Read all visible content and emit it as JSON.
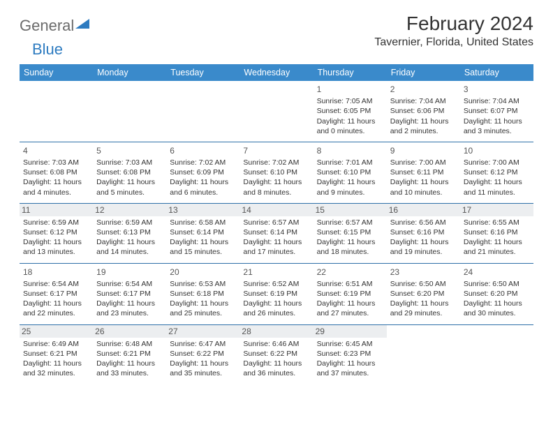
{
  "logo": {
    "part1": "General",
    "part2": "Blue"
  },
  "title": "February 2024",
  "location": "Tavernier, Florida, United States",
  "colors": {
    "header_bg": "#3a8acb",
    "header_text": "#ffffff",
    "divider": "#2d6fa8",
    "shade_bg": "#eceef0",
    "text": "#333333",
    "logo_grey": "#6b6b6b",
    "logo_blue": "#2d7bc0"
  },
  "typography": {
    "title_fontsize": 28,
    "location_fontsize": 16,
    "dayhead_fontsize": 12.5,
    "cell_fontsize": 10.5
  },
  "day_headers": [
    "Sunday",
    "Monday",
    "Tuesday",
    "Wednesday",
    "Thursday",
    "Friday",
    "Saturday"
  ],
  "weeks": [
    {
      "shaded": false,
      "days": [
        null,
        null,
        null,
        null,
        {
          "n": "1",
          "sunrise": "Sunrise: 7:05 AM",
          "sunset": "Sunset: 6:05 PM",
          "daylight1": "Daylight: 11 hours",
          "daylight2": "and 0 minutes."
        },
        {
          "n": "2",
          "sunrise": "Sunrise: 7:04 AM",
          "sunset": "Sunset: 6:06 PM",
          "daylight1": "Daylight: 11 hours",
          "daylight2": "and 2 minutes."
        },
        {
          "n": "3",
          "sunrise": "Sunrise: 7:04 AM",
          "sunset": "Sunset: 6:07 PM",
          "daylight1": "Daylight: 11 hours",
          "daylight2": "and 3 minutes."
        }
      ]
    },
    {
      "shaded": false,
      "days": [
        {
          "n": "4",
          "sunrise": "Sunrise: 7:03 AM",
          "sunset": "Sunset: 6:08 PM",
          "daylight1": "Daylight: 11 hours",
          "daylight2": "and 4 minutes."
        },
        {
          "n": "5",
          "sunrise": "Sunrise: 7:03 AM",
          "sunset": "Sunset: 6:08 PM",
          "daylight1": "Daylight: 11 hours",
          "daylight2": "and 5 minutes."
        },
        {
          "n": "6",
          "sunrise": "Sunrise: 7:02 AM",
          "sunset": "Sunset: 6:09 PM",
          "daylight1": "Daylight: 11 hours",
          "daylight2": "and 6 minutes."
        },
        {
          "n": "7",
          "sunrise": "Sunrise: 7:02 AM",
          "sunset": "Sunset: 6:10 PM",
          "daylight1": "Daylight: 11 hours",
          "daylight2": "and 8 minutes."
        },
        {
          "n": "8",
          "sunrise": "Sunrise: 7:01 AM",
          "sunset": "Sunset: 6:10 PM",
          "daylight1": "Daylight: 11 hours",
          "daylight2": "and 9 minutes."
        },
        {
          "n": "9",
          "sunrise": "Sunrise: 7:00 AM",
          "sunset": "Sunset: 6:11 PM",
          "daylight1": "Daylight: 11 hours",
          "daylight2": "and 10 minutes."
        },
        {
          "n": "10",
          "sunrise": "Sunrise: 7:00 AM",
          "sunset": "Sunset: 6:12 PM",
          "daylight1": "Daylight: 11 hours",
          "daylight2": "and 11 minutes."
        }
      ]
    },
    {
      "shaded": true,
      "days": [
        {
          "n": "11",
          "sunrise": "Sunrise: 6:59 AM",
          "sunset": "Sunset: 6:12 PM",
          "daylight1": "Daylight: 11 hours",
          "daylight2": "and 13 minutes."
        },
        {
          "n": "12",
          "sunrise": "Sunrise: 6:59 AM",
          "sunset": "Sunset: 6:13 PM",
          "daylight1": "Daylight: 11 hours",
          "daylight2": "and 14 minutes."
        },
        {
          "n": "13",
          "sunrise": "Sunrise: 6:58 AM",
          "sunset": "Sunset: 6:14 PM",
          "daylight1": "Daylight: 11 hours",
          "daylight2": "and 15 minutes."
        },
        {
          "n": "14",
          "sunrise": "Sunrise: 6:57 AM",
          "sunset": "Sunset: 6:14 PM",
          "daylight1": "Daylight: 11 hours",
          "daylight2": "and 17 minutes."
        },
        {
          "n": "15",
          "sunrise": "Sunrise: 6:57 AM",
          "sunset": "Sunset: 6:15 PM",
          "daylight1": "Daylight: 11 hours",
          "daylight2": "and 18 minutes."
        },
        {
          "n": "16",
          "sunrise": "Sunrise: 6:56 AM",
          "sunset": "Sunset: 6:16 PM",
          "daylight1": "Daylight: 11 hours",
          "daylight2": "and 19 minutes."
        },
        {
          "n": "17",
          "sunrise": "Sunrise: 6:55 AM",
          "sunset": "Sunset: 6:16 PM",
          "daylight1": "Daylight: 11 hours",
          "daylight2": "and 21 minutes."
        }
      ]
    },
    {
      "shaded": false,
      "days": [
        {
          "n": "18",
          "sunrise": "Sunrise: 6:54 AM",
          "sunset": "Sunset: 6:17 PM",
          "daylight1": "Daylight: 11 hours",
          "daylight2": "and 22 minutes."
        },
        {
          "n": "19",
          "sunrise": "Sunrise: 6:54 AM",
          "sunset": "Sunset: 6:17 PM",
          "daylight1": "Daylight: 11 hours",
          "daylight2": "and 23 minutes."
        },
        {
          "n": "20",
          "sunrise": "Sunrise: 6:53 AM",
          "sunset": "Sunset: 6:18 PM",
          "daylight1": "Daylight: 11 hours",
          "daylight2": "and 25 minutes."
        },
        {
          "n": "21",
          "sunrise": "Sunrise: 6:52 AM",
          "sunset": "Sunset: 6:19 PM",
          "daylight1": "Daylight: 11 hours",
          "daylight2": "and 26 minutes."
        },
        {
          "n": "22",
          "sunrise": "Sunrise: 6:51 AM",
          "sunset": "Sunset: 6:19 PM",
          "daylight1": "Daylight: 11 hours",
          "daylight2": "and 27 minutes."
        },
        {
          "n": "23",
          "sunrise": "Sunrise: 6:50 AM",
          "sunset": "Sunset: 6:20 PM",
          "daylight1": "Daylight: 11 hours",
          "daylight2": "and 29 minutes."
        },
        {
          "n": "24",
          "sunrise": "Sunrise: 6:50 AM",
          "sunset": "Sunset: 6:20 PM",
          "daylight1": "Daylight: 11 hours",
          "daylight2": "and 30 minutes."
        }
      ]
    },
    {
      "shaded": true,
      "days": [
        {
          "n": "25",
          "sunrise": "Sunrise: 6:49 AM",
          "sunset": "Sunset: 6:21 PM",
          "daylight1": "Daylight: 11 hours",
          "daylight2": "and 32 minutes."
        },
        {
          "n": "26",
          "sunrise": "Sunrise: 6:48 AM",
          "sunset": "Sunset: 6:21 PM",
          "daylight1": "Daylight: 11 hours",
          "daylight2": "and 33 minutes."
        },
        {
          "n": "27",
          "sunrise": "Sunrise: 6:47 AM",
          "sunset": "Sunset: 6:22 PM",
          "daylight1": "Daylight: 11 hours",
          "daylight2": "and 35 minutes."
        },
        {
          "n": "28",
          "sunrise": "Sunrise: 6:46 AM",
          "sunset": "Sunset: 6:22 PM",
          "daylight1": "Daylight: 11 hours",
          "daylight2": "and 36 minutes."
        },
        {
          "n": "29",
          "sunrise": "Sunrise: 6:45 AM",
          "sunset": "Sunset: 6:23 PM",
          "daylight1": "Daylight: 11 hours",
          "daylight2": "and 37 minutes."
        },
        null,
        null
      ]
    }
  ]
}
